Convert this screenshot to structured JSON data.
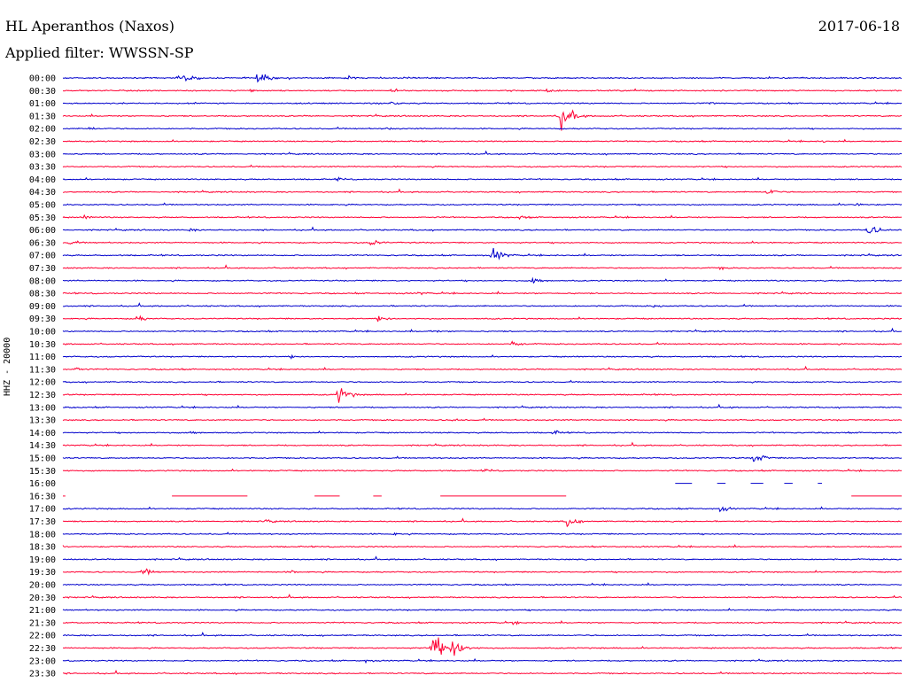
{
  "header": {
    "station": "HL Aperanthos (Naxos)",
    "date": "2017-06-18",
    "filter": "Applied filter: WWSSN-SP"
  },
  "chart_data": {
    "type": "line",
    "title": "HL Aperanthos (Naxos)",
    "ylabel": "HHZ - 20000",
    "colors": {
      "even": "#0000cc",
      "odd": "#ff0033"
    },
    "rows": [
      {
        "label": "00:00",
        "events": [
          [
            0.18,
            8
          ],
          [
            0.29,
            12
          ],
          [
            0.42,
            4
          ]
        ]
      },
      {
        "label": "00:30",
        "events": [
          [
            0.28,
            3
          ],
          [
            0.49,
            4
          ],
          [
            0.72,
            4
          ]
        ]
      },
      {
        "label": "01:00",
        "events": [
          [
            0.49,
            4
          ],
          [
            0.96,
            3
          ]
        ]
      },
      {
        "label": "01:30",
        "events": [
          [
            0.74,
            24
          ]
        ]
      },
      {
        "label": "02:00",
        "events": [
          [
            0.04,
            3
          ],
          [
            0.48,
            3
          ]
        ]
      },
      {
        "label": "02:30",
        "events": [
          [
            1.13,
            3
          ]
        ]
      },
      {
        "label": "03:00",
        "events": []
      },
      {
        "label": "03:30",
        "events": []
      },
      {
        "label": "04:00",
        "events": [
          [
            0.41,
            3
          ]
        ]
      },
      {
        "label": "04:30",
        "events": [
          [
            1.05,
            6
          ]
        ]
      },
      {
        "label": "05:00",
        "events": [
          [
            1.18,
            3
          ]
        ]
      },
      {
        "label": "05:30",
        "events": [
          [
            0.03,
            4
          ],
          [
            0.68,
            4
          ]
        ]
      },
      {
        "label": "06:00",
        "events": [
          [
            0.19,
            3
          ],
          [
            1.2,
            10
          ]
        ]
      },
      {
        "label": "06:30",
        "events": [
          [
            0.01,
            4
          ],
          [
            0.46,
            6
          ]
        ]
      },
      {
        "label": "07:00",
        "events": [
          [
            0.64,
            12
          ]
        ]
      },
      {
        "label": "07:30",
        "events": [
          [
            0.98,
            3
          ]
        ]
      },
      {
        "label": "08:00",
        "events": [
          [
            0.7,
            7
          ]
        ]
      },
      {
        "label": "08:30",
        "events": [
          [
            0.53,
            3
          ]
        ]
      },
      {
        "label": "09:00",
        "events": [
          [
            0.88,
            3
          ]
        ]
      },
      {
        "label": "09:30",
        "events": [
          [
            0.11,
            6
          ],
          [
            0.47,
            6
          ]
        ]
      },
      {
        "label": "10:00",
        "events": [
          [
            0.55,
            3
          ]
        ]
      },
      {
        "label": "10:30",
        "events": [
          [
            0.67,
            5
          ]
        ]
      },
      {
        "label": "11:00",
        "events": [
          [
            0.34,
            3
          ]
        ]
      },
      {
        "label": "11:30",
        "events": [
          [
            0.02,
            4
          ]
        ]
      },
      {
        "label": "12:00",
        "events": []
      },
      {
        "label": "12:30",
        "events": [
          [
            0.41,
            14
          ]
        ]
      },
      {
        "label": "13:00",
        "events": [
          [
            0.99,
            2
          ]
        ]
      },
      {
        "label": "13:30",
        "events": [
          [
            0.58,
            3
          ]
        ]
      },
      {
        "label": "14:00",
        "events": [
          [
            0.73,
            4
          ],
          [
            0.19,
            4
          ]
        ]
      },
      {
        "label": "14:30",
        "events": []
      },
      {
        "label": "15:00",
        "events": [
          [
            1.03,
            10
          ]
        ]
      },
      {
        "label": "15:30",
        "events": [
          [
            0.63,
            3
          ]
        ]
      },
      {
        "label": "16:00",
        "gap": true,
        "events": []
      },
      {
        "label": "16:30",
        "gap": true,
        "events": [
          [
            0.34,
            12
          ],
          [
            1.15,
            10
          ]
        ]
      },
      {
        "label": "17:00",
        "events": [
          [
            0.98,
            5
          ]
        ]
      },
      {
        "label": "17:30",
        "events": [
          [
            0.75,
            10
          ],
          [
            0.3,
            4
          ]
        ]
      },
      {
        "label": "18:00",
        "events": [
          [
            0.49,
            3
          ]
        ]
      },
      {
        "label": "18:30",
        "events": []
      },
      {
        "label": "19:00",
        "events": []
      },
      {
        "label": "19:30",
        "events": [
          [
            0.12,
            6
          ],
          [
            0.34,
            3
          ]
        ]
      },
      {
        "label": "20:00",
        "events": []
      },
      {
        "label": "20:30",
        "events": []
      },
      {
        "label": "21:00",
        "events": []
      },
      {
        "label": "21:30",
        "events": [
          [
            0.67,
            3
          ]
        ]
      },
      {
        "label": "22:00",
        "events": []
      },
      {
        "label": "22:30",
        "events": [
          [
            0.55,
            28
          ],
          [
            0.58,
            20
          ]
        ]
      },
      {
        "label": "23:00",
        "events": [
          [
            0.45,
            3
          ]
        ]
      },
      {
        "label": "23:30",
        "events": []
      }
    ]
  }
}
